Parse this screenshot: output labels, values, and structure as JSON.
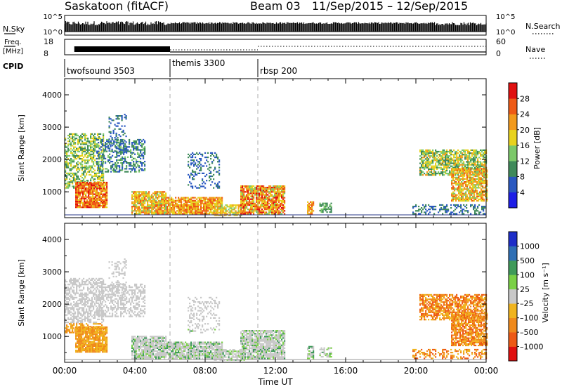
{
  "header": {
    "station": "Saskatoon (fitACF)",
    "beam": "Beam 03",
    "date_range": "11/Sep/2015 – 12/Sep/2015"
  },
  "nsky_panel": {
    "label": "N.Sky",
    "left_ticks": [
      "10^5",
      "10^0"
    ],
    "right_ticks": [
      "10^5",
      "10^0"
    ],
    "right_label": "N.Search"
  },
  "freq_panel": {
    "label_line1": "Freq.",
    "label_line2": "[MHz]",
    "left_ticks": [
      "18",
      "8"
    ],
    "right_ticks": [
      "60",
      "0"
    ],
    "right_label": "Nave"
  },
  "cpid": {
    "label": "CPID",
    "segments": [
      {
        "name": "twofsound 3503",
        "start_hour": 0
      },
      {
        "name": "themis 3300",
        "start_hour": 6
      },
      {
        "name": "rbsp 200",
        "start_hour": 11
      }
    ]
  },
  "chart_data": [
    {
      "type": "heatmap",
      "title": "",
      "xlabel": "",
      "ylabel": "Slant Range [km]",
      "xlim": [
        0,
        24
      ],
      "ylim": [
        200,
        4500
      ],
      "yticks": [
        "1000",
        "2000",
        "3000",
        "4000"
      ],
      "colorbar": {
        "label": "Power [dB]",
        "ticks": [
          "4",
          "8",
          "12",
          "16",
          "20",
          "24",
          "28"
        ],
        "range": [
          0,
          32
        ],
        "colors": [
          "#1e1ee6",
          "#2a58c0",
          "#3f8a5a",
          "#7cc86a",
          "#e8d21e",
          "#f29a1c",
          "#ee5a16",
          "#e01010"
        ]
      }
    },
    {
      "type": "heatmap",
      "title": "",
      "xlabel": "Time UT",
      "ylabel": "Slant Range [km]",
      "xlim": [
        0,
        24
      ],
      "ylim": [
        200,
        4500
      ],
      "yticks": [
        "1000",
        "2000",
        "3000",
        "4000"
      ],
      "xticks": [
        "00:00",
        "04:00",
        "08:00",
        "12:00",
        "16:00",
        "20:00",
        "00:00"
      ],
      "colorbar": {
        "label": "Velocity [m s⁻¹]",
        "ticks": [
          "1000",
          "500",
          "100",
          "25",
          "–25",
          "–100",
          "–500",
          "–1000"
        ],
        "colors": [
          "#1e2ec8",
          "#2f6fb4",
          "#3f9a5a",
          "#7ad046",
          "#c8c8c8",
          "#f0b41e",
          "#f08a1c",
          "#ee5a16",
          "#e01010"
        ]
      }
    }
  ]
}
